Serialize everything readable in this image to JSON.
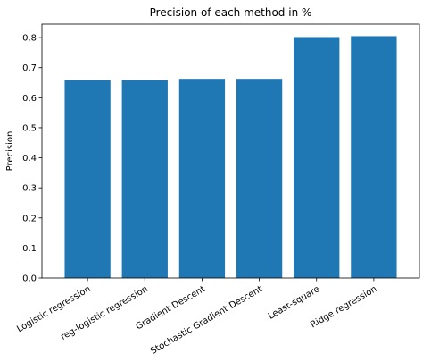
{
  "chart_data": {
    "type": "bar",
    "title": "Precision of each method in %",
    "xlabel": "",
    "ylabel": "Precision",
    "categories": [
      "Logistic regression",
      "reg-logistic regression",
      "Gradient Descent",
      "Stochastic Gradient Descent",
      "Least-square",
      "Ridge regression"
    ],
    "values": [
      0.658,
      0.658,
      0.663,
      0.663,
      0.802,
      0.805
    ],
    "ylim": [
      0,
      0.845
    ],
    "yticks": [
      0.0,
      0.1,
      0.2,
      0.3,
      0.4,
      0.5,
      0.6,
      0.7,
      0.8
    ],
    "ytick_labels": [
      "0.0",
      "0.1",
      "0.2",
      "0.3",
      "0.4",
      "0.5",
      "0.6",
      "0.7",
      "0.8"
    ],
    "grid": false,
    "bar_color": "#1f77b4"
  }
}
